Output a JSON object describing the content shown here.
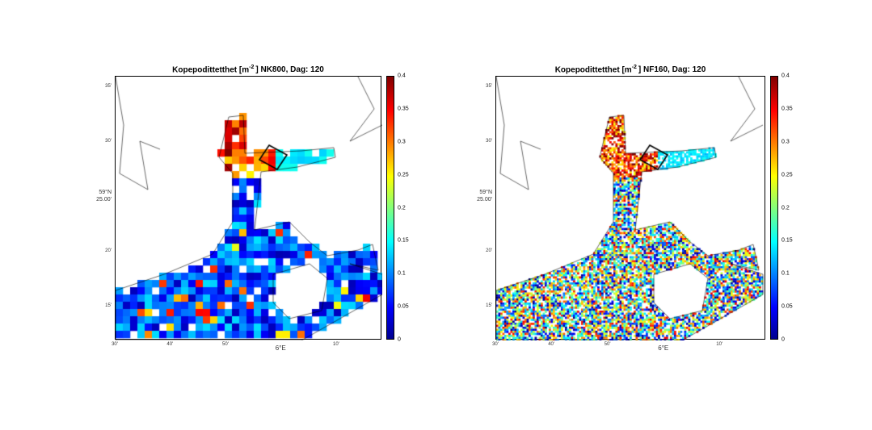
{
  "figure": {
    "panels": [
      {
        "title_prefix": "Kopepodittetthet [m",
        "title_exp": "-2",
        "title_suffix": "] NK800, Dag: 120",
        "model": "NK800"
      },
      {
        "title_prefix": "Kopepodittetthet [m",
        "title_exp": "-2",
        "title_suffix": "] NF160, Dag: 120",
        "model": "NF160"
      }
    ],
    "y_ticks": [
      "35'",
      "30'",
      "20'",
      "15'"
    ],
    "y_label_line1": "59°N",
    "y_label_line2": "25.00'",
    "x_ticks": [
      "30'",
      "40'",
      "50'",
      "10'"
    ],
    "x_label": "6°E",
    "colorbar_ticks": [
      "0.4",
      "0.35",
      "0.3",
      "0.25",
      "0.2",
      "0.15",
      "0.1",
      "0.05",
      "0"
    ],
    "colorbar_range": [
      0,
      0.4
    ],
    "colormap": "jet"
  }
}
